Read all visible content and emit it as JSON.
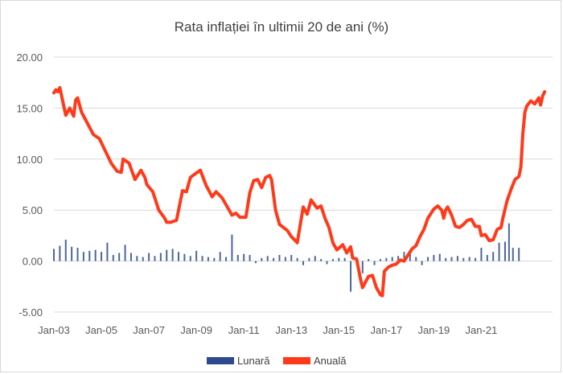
{
  "chart_data": {
    "type": "line",
    "title": "Rata inflației în ultimii 20 de ani (%)",
    "xlabel": "",
    "ylabel": "",
    "ylim": [
      -5,
      20
    ],
    "y_ticks": [
      "20.00",
      "15.00",
      "10.00",
      "5.00",
      "0.00",
      "-5.00"
    ],
    "x_ticks": [
      "Jan-03",
      "Jan-05",
      "Jan-07",
      "Jan-09",
      "Jan-11",
      "Jan-13",
      "Jan-15",
      "Jan-17",
      "Jan-19",
      "Jan-21"
    ],
    "x_range": [
      "Jan-03",
      "Sep-22"
    ],
    "grid": "horizontal",
    "legend_position": "bottom",
    "series": [
      {
        "name": "Lunară",
        "kind": "bar",
        "color": "#2e4a8e",
        "points": [
          [
            "Jan-03",
            1.2
          ],
          [
            "Apr-03",
            1.5
          ],
          [
            "Jul-03",
            2.1
          ],
          [
            "Oct-03",
            1.4
          ],
          [
            "Jan-04",
            1.3
          ],
          [
            "Apr-04",
            0.9
          ],
          [
            "Jul-04",
            1.0
          ],
          [
            "Oct-04",
            1.1
          ],
          [
            "Jan-05",
            0.9
          ],
          [
            "Apr-05",
            1.8
          ],
          [
            "Jul-05",
            0.6
          ],
          [
            "Oct-05",
            0.8
          ],
          [
            "Jan-06",
            1.6
          ],
          [
            "Apr-06",
            0.8
          ],
          [
            "Jul-06",
            0.5
          ],
          [
            "Oct-06",
            0.4
          ],
          [
            "Jan-07",
            0.8
          ],
          [
            "Apr-07",
            0.5
          ],
          [
            "Jul-07",
            0.8
          ],
          [
            "Oct-07",
            1.1
          ],
          [
            "Jan-08",
            1.2
          ],
          [
            "Apr-08",
            0.9
          ],
          [
            "Jul-08",
            0.7
          ],
          [
            "Oct-08",
            0.5
          ],
          [
            "Jan-09",
            1.0
          ],
          [
            "Apr-09",
            0.5
          ],
          [
            "Jul-09",
            0.4
          ],
          [
            "Oct-09",
            0.3
          ],
          [
            "Jan-10",
            0.9
          ],
          [
            "Apr-10",
            0.4
          ],
          [
            "Jul-10",
            2.6
          ],
          [
            "Oct-10",
            0.6
          ],
          [
            "Jan-11",
            0.7
          ],
          [
            "Apr-11",
            0.6
          ],
          [
            "Jul-11",
            -0.2
          ],
          [
            "Oct-11",
            0.3
          ],
          [
            "Jan-12",
            0.5
          ],
          [
            "Apr-12",
            0.3
          ],
          [
            "Jul-12",
            0.6
          ],
          [
            "Oct-12",
            0.4
          ],
          [
            "Jan-13",
            0.6
          ],
          [
            "Apr-13",
            0.3
          ],
          [
            "Jul-13",
            -0.4
          ],
          [
            "Oct-13",
            0.3
          ],
          [
            "Jan-14",
            0.5
          ],
          [
            "Apr-14",
            0.2
          ],
          [
            "Jul-14",
            -0.3
          ],
          [
            "Oct-14",
            0.2
          ],
          [
            "Jan-15",
            0.3
          ],
          [
            "Apr-15",
            0.3
          ],
          [
            "Jul-15",
            -3.0
          ],
          [
            "Oct-15",
            -0.3
          ],
          [
            "Jan-16",
            -1.2
          ],
          [
            "Apr-16",
            0.2
          ],
          [
            "Jul-16",
            -0.4
          ],
          [
            "Oct-16",
            0.2
          ],
          [
            "Jan-17",
            0.3
          ],
          [
            "Apr-17",
            0.4
          ],
          [
            "Jul-17",
            0.5
          ],
          [
            "Oct-17",
            0.9
          ],
          [
            "Jan-18",
            1.0
          ],
          [
            "Apr-18",
            0.4
          ],
          [
            "Jul-18",
            -0.4
          ],
          [
            "Oct-18",
            0.4
          ],
          [
            "Jan-19",
            0.6
          ],
          [
            "Apr-19",
            0.7
          ],
          [
            "Jul-19",
            0.3
          ],
          [
            "Oct-19",
            0.4
          ],
          [
            "Jan-20",
            0.5
          ],
          [
            "Apr-20",
            0.3
          ],
          [
            "Jul-20",
            0.4
          ],
          [
            "Oct-20",
            0.3
          ],
          [
            "Jan-21",
            1.3
          ],
          [
            "Apr-21",
            0.6
          ],
          [
            "Jul-21",
            0.9
          ],
          [
            "Oct-21",
            1.8
          ],
          [
            "Jan-22",
            1.9
          ],
          [
            "Mar-22",
            3.7
          ],
          [
            "May-22",
            1.3
          ],
          [
            "Aug-22",
            1.3
          ]
        ]
      },
      {
        "name": "Anuală",
        "kind": "line",
        "color": "#ff3a1a",
        "points": [
          [
            "Jan-03",
            16.5
          ],
          [
            "Feb-03",
            16.8
          ],
          [
            "Mar-03",
            16.6
          ],
          [
            "Apr-03",
            17.0
          ],
          [
            "Jun-03",
            15.2
          ],
          [
            "Jul-03",
            14.3
          ],
          [
            "Sep-03",
            15.0
          ],
          [
            "Nov-03",
            14.2
          ],
          [
            "Dec-03",
            15.8
          ],
          [
            "Jan-04",
            16.0
          ],
          [
            "Mar-04",
            14.6
          ],
          [
            "Jun-04",
            13.5
          ],
          [
            "Sep-04",
            12.4
          ],
          [
            "Dec-04",
            12.0
          ],
          [
            "Mar-05",
            10.8
          ],
          [
            "Jun-05",
            9.6
          ],
          [
            "Sep-05",
            8.8
          ],
          [
            "Nov-05",
            8.7
          ],
          [
            "Dec-05",
            10.0
          ],
          [
            "Mar-06",
            9.6
          ],
          [
            "Jun-06",
            8.0
          ],
          [
            "Sep-06",
            8.9
          ],
          [
            "Nov-06",
            8.2
          ],
          [
            "Dec-06",
            7.5
          ],
          [
            "Mar-07",
            6.8
          ],
          [
            "Jun-07",
            5.0
          ],
          [
            "Sep-07",
            4.2
          ],
          [
            "Oct-07",
            3.8
          ],
          [
            "Dec-07",
            3.8
          ],
          [
            "Mar-08",
            4.0
          ],
          [
            "Jun-08",
            6.9
          ],
          [
            "Aug-08",
            6.8
          ],
          [
            "Oct-08",
            8.2
          ],
          [
            "Dec-08",
            8.5
          ],
          [
            "Mar-09",
            8.9
          ],
          [
            "Apr-09",
            8.4
          ],
          [
            "Jun-09",
            7.4
          ],
          [
            "Sep-09",
            6.3
          ],
          [
            "Nov-09",
            6.8
          ],
          [
            "Feb-10",
            6.2
          ],
          [
            "May-10",
            5.2
          ],
          [
            "Jul-10",
            4.5
          ],
          [
            "Sep-10",
            4.7
          ],
          [
            "Nov-10",
            4.3
          ],
          [
            "Feb-11",
            4.3
          ],
          [
            "Apr-11",
            6.7
          ],
          [
            "Jun-11",
            7.9
          ],
          [
            "Aug-11",
            8.0
          ],
          [
            "Oct-11",
            7.2
          ],
          [
            "Dec-11",
            8.2
          ],
          [
            "Feb-12",
            8.4
          ],
          [
            "Mar-12",
            8.0
          ],
          [
            "May-12",
            5.0
          ],
          [
            "Jul-12",
            3.6
          ],
          [
            "Sep-12",
            3.3
          ],
          [
            "Nov-12",
            3.0
          ],
          [
            "Jan-13",
            2.4
          ],
          [
            "Mar-13",
            2.0
          ],
          [
            "Apr-13",
            1.8
          ],
          [
            "Jul-13",
            5.3
          ],
          [
            "Sep-13",
            4.6
          ],
          [
            "Nov-13",
            6.0
          ],
          [
            "Feb-14",
            5.2
          ],
          [
            "Apr-14",
            5.4
          ],
          [
            "Jun-14",
            4.2
          ],
          [
            "Aug-14",
            3.3
          ],
          [
            "Oct-14",
            1.8
          ],
          [
            "Dec-14",
            1.1
          ],
          [
            "Mar-15",
            1.6
          ],
          [
            "May-15",
            0.8
          ],
          [
            "Jul-15",
            1.4
          ],
          [
            "Aug-15",
            0.3
          ],
          [
            "Oct-15",
            0.2
          ],
          [
            "Dec-15",
            -1.8
          ],
          [
            "Jan-16",
            -2.6
          ],
          [
            "Apr-16",
            -1.5
          ],
          [
            "Jun-16",
            -1.4
          ],
          [
            "Aug-16",
            -2.6
          ],
          [
            "Oct-16",
            -3.3
          ],
          [
            "Nov-16",
            -3.4
          ],
          [
            "Dec-16",
            -1.0
          ],
          [
            "Feb-17",
            -0.6
          ],
          [
            "Apr-17",
            -0.4
          ],
          [
            "Jun-17",
            -0.3
          ],
          [
            "Aug-17",
            0.1
          ],
          [
            "Oct-17",
            0.0
          ],
          [
            "Dec-17",
            0.6
          ],
          [
            "Feb-18",
            1.2
          ],
          [
            "Apr-18",
            1.5
          ],
          [
            "Jun-18",
            2.4
          ],
          [
            "Aug-18",
            3.1
          ],
          [
            "Oct-18",
            4.2
          ],
          [
            "Jan-19",
            5.1
          ],
          [
            "Mar-19",
            5.4
          ],
          [
            "May-19",
            5.0
          ],
          [
            "Jun-19",
            4.2
          ],
          [
            "Jul-19",
            5.0
          ],
          [
            "Aug-19",
            5.3
          ],
          [
            "Oct-19",
            4.5
          ],
          [
            "Dec-19",
            3.4
          ],
          [
            "Feb-20",
            3.3
          ],
          [
            "Apr-20",
            3.6
          ],
          [
            "Jun-20",
            4.0
          ],
          [
            "Aug-20",
            4.1
          ],
          [
            "Oct-20",
            3.4
          ],
          [
            "Dec-20",
            3.4
          ],
          [
            "Jan-21",
            2.5
          ],
          [
            "Mar-21",
            2.6
          ],
          [
            "May-21",
            2.0
          ],
          [
            "Jul-21",
            2.1
          ],
          [
            "Aug-21",
            2.6
          ],
          [
            "Sep-21",
            3.1
          ],
          [
            "Nov-21",
            3.3
          ],
          [
            "Dec-21",
            4.3
          ],
          [
            "Feb-22",
            5.9
          ],
          [
            "Apr-22",
            7.0
          ],
          [
            "Jun-22",
            8.0
          ],
          [
            "Aug-22",
            8.3
          ],
          [
            "Sep-22",
            9.2
          ],
          [
            "Oct-22",
            12.5
          ],
          [
            "Nov-22",
            14.6
          ],
          [
            "Dec-22",
            15.2
          ],
          [
            "Feb-23",
            15.7
          ],
          [
            "Apr-23",
            15.4
          ],
          [
            "Jun-23",
            16.0
          ],
          [
            "Jul-23",
            15.3
          ],
          [
            "Aug-23",
            16.2
          ],
          [
            "Sep-23",
            16.6
          ]
        ]
      }
    ]
  }
}
